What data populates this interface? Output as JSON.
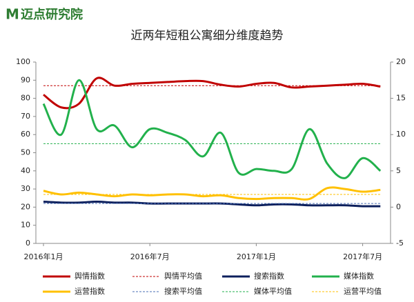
{
  "logo": "迈点研究院",
  "chart_data": {
    "type": "line",
    "title": "近两年短租公寓细分维度趋势",
    "categories": [
      "2016年1月",
      null,
      null,
      null,
      null,
      null,
      "2016年7月",
      null,
      null,
      null,
      null,
      null,
      "2017年1月",
      null,
      null,
      null,
      null,
      null,
      "2017年7月",
      null
    ],
    "ylim": [
      0,
      100
    ],
    "yticks": [
      0,
      10,
      20,
      30,
      40,
      50,
      60,
      70,
      80,
      90,
      100
    ],
    "y2lim": [
      -5,
      20
    ],
    "y2ticks": [
      -5,
      0,
      5,
      10,
      15,
      20
    ],
    "series": [
      {
        "name": "舆情指数",
        "color": "#c00000",
        "values": [
          82,
          75,
          77,
          91,
          87,
          88,
          88.5,
          89,
          89.5,
          89.5,
          87.5,
          86.5,
          88,
          88.5,
          86,
          86.5,
          87,
          87.5,
          88,
          86.5
        ]
      },
      {
        "name": "舆情平均值",
        "color": "#c00000",
        "dashed": true,
        "value": 87
      },
      {
        "name": "搜索指数",
        "color": "#0c1f5c",
        "values": [
          23,
          22.5,
          22.5,
          23,
          22.5,
          22.5,
          22,
          22,
          22,
          22,
          22,
          21.5,
          21,
          21.5,
          21.5,
          21,
          21,
          21,
          20.5,
          20.5
        ]
      },
      {
        "name": "媒体指数",
        "color": "#22b14c",
        "values": [
          77,
          60,
          90,
          63,
          65,
          53,
          63,
          61,
          57,
          48,
          61,
          39,
          41,
          40,
          41,
          63,
          44,
          36,
          47,
          40
        ]
      },
      {
        "name": "运营指数",
        "color": "#ffc000",
        "values": [
          29,
          27,
          28,
          27,
          26,
          27,
          26.5,
          27,
          27,
          26,
          26.5,
          25,
          24.5,
          25,
          25,
          24.5,
          30.5,
          30,
          28.5,
          29.5
        ]
      },
      {
        "name": "搜索平均值",
        "color": "#4a6fb5",
        "dashed": true,
        "value": 22
      },
      {
        "name": "媒体平均值",
        "color": "#22b14c",
        "dashed": true,
        "value": 55
      },
      {
        "name": "运营平均值",
        "color": "#ffc000",
        "dashed": true,
        "value": 27
      }
    ]
  }
}
